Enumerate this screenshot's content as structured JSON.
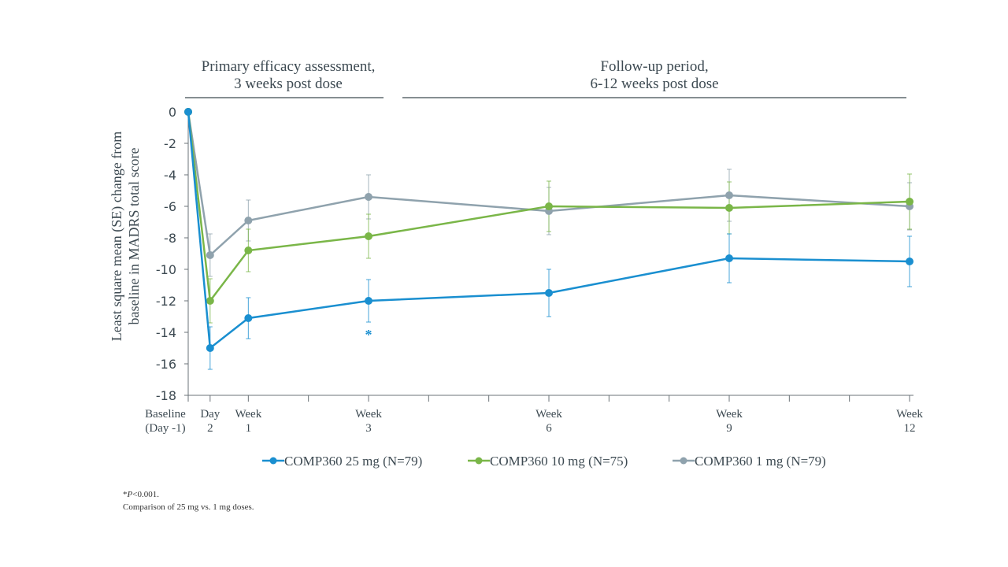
{
  "chart_data": {
    "type": "line",
    "title": "",
    "section_labels": [
      {
        "lines": [
          "Primary efficacy assessment,",
          "3 weeks post dose"
        ]
      },
      {
        "lines": [
          "Follow-up period,",
          "6-12 weeks post dose"
        ]
      }
    ],
    "ylabel_lines": [
      "Least square mean (SE) change from",
      "baseline in MADRS total score"
    ],
    "xlabel": "",
    "ylim": [
      -18,
      0
    ],
    "yticks": [
      0,
      -2,
      -4,
      -6,
      -8,
      -10,
      -12,
      -14,
      -16,
      -18
    ],
    "x_unit": "weeks",
    "xlim": [
      0,
      12
    ],
    "x_minor_ticks": [
      0,
      0.43,
      1,
      2,
      3,
      4,
      5,
      6,
      7,
      8,
      9,
      10,
      11,
      12
    ],
    "x": [
      0,
      0.43,
      1,
      3,
      6,
      9,
      12
    ],
    "xtick_labels": [
      [
        "Baseline",
        "(Day -1)"
      ],
      [
        "Day",
        "2"
      ],
      [
        "Week",
        "1"
      ],
      [
        "Week",
        "3"
      ],
      [
        "Week",
        "6"
      ],
      [
        "Week",
        "9"
      ],
      [
        "Week",
        "12"
      ]
    ],
    "grid": false,
    "legend_placement": "bottom",
    "series": [
      {
        "name": "COMP360 25 mg (N=79)",
        "color": "#1a8fd0",
        "values": [
          0,
          -15.0,
          -13.1,
          -12.0,
          -11.5,
          -9.3,
          -9.5
        ],
        "se": [
          0,
          1.35,
          1.3,
          1.35,
          1.5,
          1.55,
          1.6
        ]
      },
      {
        "name": "COMP360 10 mg (N=75)",
        "color": "#7ab648",
        "values": [
          0,
          -12.0,
          -8.8,
          -7.9,
          -6.0,
          -6.1,
          -5.7
        ],
        "se": [
          0,
          1.4,
          1.35,
          1.4,
          1.6,
          1.65,
          1.75
        ]
      },
      {
        "name": "COMP360 1 mg (N=79)",
        "color": "#8fa2ad",
        "values": [
          0,
          -9.1,
          -6.9,
          -5.4,
          -6.3,
          -5.3,
          -6.0
        ],
        "se": [
          0,
          1.35,
          1.3,
          1.4,
          1.5,
          1.65,
          1.5
        ]
      }
    ],
    "annotations": [
      {
        "text": "*",
        "x": 3,
        "series": "COMP360 25 mg (N=79)",
        "color": "#1a8fd0"
      }
    ]
  },
  "footnotes": {
    "sig_star": "*",
    "sig_p": "P",
    "sig_rest": "<0.001.",
    "comparison": "Comparison of 25 mg vs. 1 mg doses."
  }
}
